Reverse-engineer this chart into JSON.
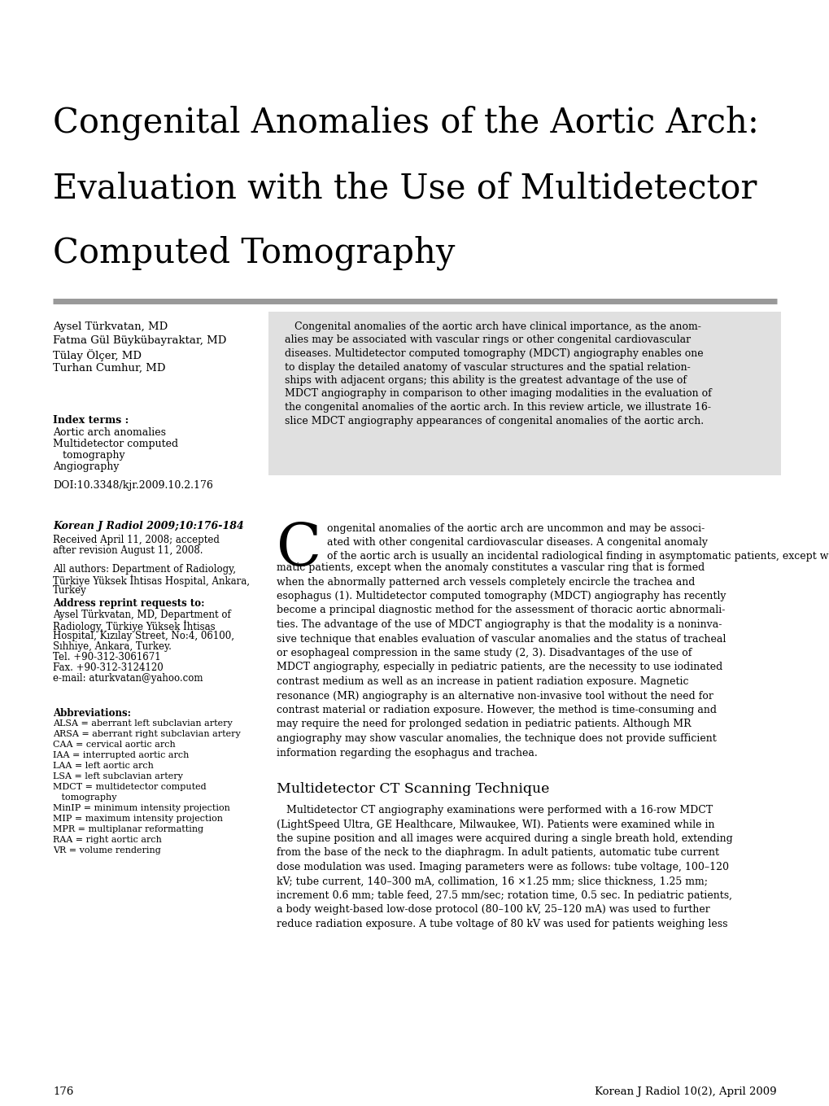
{
  "title_line1": "Congenital Anomalies of the Aortic Arch:",
  "title_line2": "Evaluation with the Use of Multidetector",
  "title_line3": "Computed Tomography",
  "title_font_size": 30,
  "authors": [
    "Aysel Türkvatan, MD",
    "Fatma Gül Büykübayraktar, MD",
    "Tülay Ölçer, MD",
    "Turhan Cumhur, MD"
  ],
  "index_terms_label": "Index terms :",
  "index_terms": [
    "Aortic arch anomalies",
    "Multidetector computed",
    "   tomography",
    "Angiography"
  ],
  "doi": "DOI:10.3348/kjr.2009.10.2.176",
  "journal_ref_bold": "Korean J Radiol 2009;10:176-184",
  "received": [
    "Received April 11, 2008; accepted",
    "after revision August 11, 2008."
  ],
  "all_authors_dept": [
    "All authors: Department of Radiology,",
    "Türkiye Yüksek İhtisas Hospital, Ankara,",
    "Turkey"
  ],
  "address_label": "Address reprint requests to:",
  "address_text": [
    "Aysel Türkvatan, MD, Department of",
    "Radiology, Türkiye Yüksek İhtisas",
    "Hospital, Kızılay Street, No:4, 06100,",
    "Sıhhiye, Ankara, Turkey.",
    "Tel. +90-312-3061671",
    "Fax. +90-312-3124120",
    "e-mail: aturkvatan@yahoo.com"
  ],
  "abbrev_label": "Abbreviations:",
  "abbreviations": [
    "ALSA = aberrant left subclavian artery",
    "ARSA = aberrant right subclavian artery",
    "CAA = cervical aortic arch",
    "IAA = interrupted aortic arch",
    "LAA = left aortic arch",
    "LSA = left subclavian artery",
    "MDCT = multidetector computed",
    "   tomography",
    "MinIP = minimum intensity projection",
    "MIP = maximum intensity projection",
    "MPR = multiplanar reformatting",
    "RAA = right aortic arch",
    "VR = volume rendering"
  ],
  "abstract_lines": [
    "   Congenital anomalies of the aortic arch have clinical importance, as the anom-",
    "alies may be associated with vascular rings or other congenital cardiovascular",
    "diseases. Multidetector computed tomography (MDCT) angiography enables one",
    "to display the detailed anatomy of vascular structures and the spatial relation-",
    "ships with adjacent organs; this ability is the greatest advantage of the use of",
    "MDCT angiography in comparison to other imaging modalities in the evaluation of",
    "the congenital anomalies of the aortic arch. In this review article, we illustrate 16-",
    "slice MDCT angiography appearances of congenital anomalies of the aortic arch."
  ],
  "drop_cap": "C",
  "body_after_drop": [
    "ongenital anomalies of the aortic arch are uncommon and may be associ-",
    "ated with other congenital cardiovascular diseases. A congenital anomaly",
    "of the aortic arch is usually an incidental radiological finding in asymptomatic patients, except when the anomaly"
  ],
  "body_lines": [
    "matic patients, except when the anomaly constitutes a vascular ring that is formed",
    "when the abnormally patterned arch vessels completely encircle the trachea and",
    "esophagus (1). Multidetector computed tomography (MDCT) angiography has recently",
    "become a principal diagnostic method for the assessment of thoracic aortic abnormali-",
    "ties. The advantage of the use of MDCT angiography is that the modality is a noninva-",
    "sive technique that enables evaluation of vascular anomalies and the status of tracheal",
    "or esophageal compression in the same study (2, 3). Disadvantages of the use of",
    "MDCT angiography, especially in pediatric patients, are the necessity to use iodinated",
    "contrast medium as well as an increase in patient radiation exposure. Magnetic",
    "resonance (MR) angiography is an alternative non-invasive tool without the need for",
    "contrast material or radiation exposure. However, the method is time-consuming and",
    "may require the need for prolonged sedation in pediatric patients. Although MR",
    "angiography may show vascular anomalies, the technique does not provide sufficient",
    "information regarding the esophagus and trachea."
  ],
  "section_title": "Multidetector CT Scanning Technique",
  "section_lines": [
    "   Multidetector CT angiography examinations were performed with a 16-row MDCT",
    "(LightSpeed Ultra, GE Healthcare, Milwaukee, WI). Patients were examined while in",
    "the supine position and all images were acquired during a single breath hold, extending",
    "from the base of the neck to the diaphragm. In adult patients, automatic tube current",
    "dose modulation was used. Imaging parameters were as follows: tube voltage, 100–120",
    "kV; tube current, 140–300 mA, collimation, 16 ×1.25 mm; slice thickness, 1.25 mm;",
    "increment 0.6 mm; table feed, 27.5 mm/sec; rotation time, 0.5 sec. In pediatric patients,",
    "a body weight-based low-dose protocol (80–100 kV, 25–120 mA) was used to further",
    "reduce radiation exposure. A tube voltage of 80 kV was used for patients weighing less"
  ],
  "page_number": "176",
  "journal_footer": "Korean J Radiol 10(2), April 2009",
  "background_color": "#ffffff",
  "text_color": "#000000",
  "abstract_bg": "#e0e0e0",
  "separator_color": "#999999"
}
